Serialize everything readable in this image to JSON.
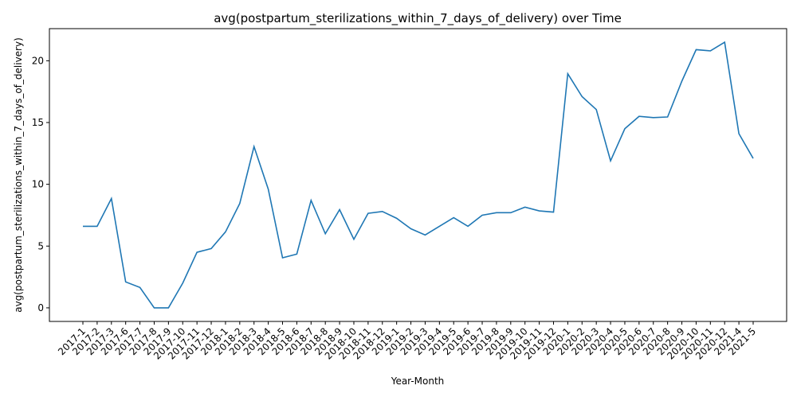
{
  "chart_data": {
    "type": "line",
    "title": "avg(postpartum_sterilizations_within_7_days_of_delivery) over Time",
    "xlabel": "Year-Month",
    "ylabel": "avg(postpartum_sterilizations_within_7_days_of_delivery)",
    "categories": [
      "2017-1",
      "2017-2",
      "2017-3",
      "2017-6",
      "2017-7",
      "2017-8",
      "2017-9",
      "2017-10",
      "2017-11",
      "2017-12",
      "2018-1",
      "2018-2",
      "2018-3",
      "2018-4",
      "2018-5",
      "2018-6",
      "2018-7",
      "2018-8",
      "2018-9",
      "2018-10",
      "2018-11",
      "2018-12",
      "2019-1",
      "2019-2",
      "2019-3",
      "2019-4",
      "2019-5",
      "2019-6",
      "2019-7",
      "2019-8",
      "2019-9",
      "2019-10",
      "2019-11",
      "2019-12",
      "2020-1",
      "2020-2",
      "2020-3",
      "2020-4",
      "2020-5",
      "2020-6",
      "2020-7",
      "2020-8",
      "2020-9",
      "2020-10",
      "2020-11",
      "2020-12",
      "2021-4",
      "2021-5"
    ],
    "values": [
      6.6,
      6.6,
      8.85,
      2.1,
      1.65,
      0.0,
      0.0,
      2.0,
      4.5,
      4.8,
      6.15,
      8.45,
      13.05,
      9.6,
      4.05,
      4.35,
      8.7,
      6.0,
      7.95,
      5.55,
      7.65,
      7.8,
      7.25,
      6.4,
      5.9,
      6.6,
      7.3,
      6.6,
      7.5,
      7.7,
      7.7,
      8.15,
      7.85,
      7.75,
      18.95,
      17.1,
      16.05,
      11.9,
      14.5,
      15.5,
      15.4,
      15.45,
      18.35,
      20.9,
      20.8,
      21.5,
      14.1,
      12.1
    ],
    "yticks": [
      0,
      5,
      10,
      15,
      20
    ],
    "ylim": [
      -1.1,
      22.6
    ],
    "grid": false,
    "legend": "none",
    "line_color": "#1f77b4"
  }
}
